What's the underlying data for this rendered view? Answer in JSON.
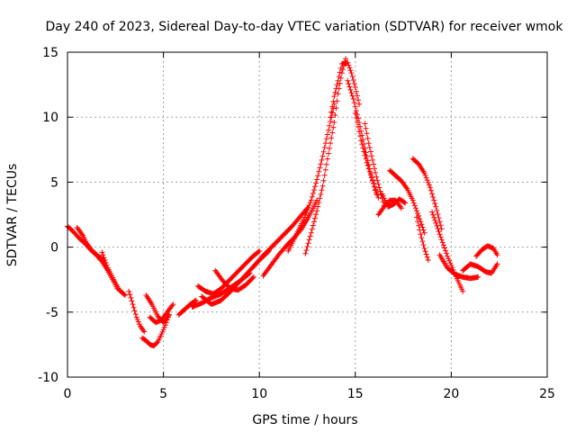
{
  "chart_data": {
    "type": "scatter",
    "title": "Day 240 of 2023, Sidereal Day-to-day VTEC variation (SDTVAR) for receiver wmok",
    "xlabel": "GPS time / hours",
    "ylabel": "SDTVAR / TECUs",
    "xlim": [
      0,
      25
    ],
    "ylim": [
      -10,
      15
    ],
    "xticks": [
      0,
      5,
      10,
      15,
      20,
      25
    ],
    "yticks": [
      -10,
      -5,
      0,
      5,
      10,
      15
    ],
    "grid": true,
    "marker": "+",
    "series": [
      {
        "name": "SDTVAR",
        "color": "#ff0000",
        "tracks": [
          {
            "x": [
              0.0,
              0.3,
              0.6,
              0.9,
              1.2,
              1.5,
              1.8,
              2.1,
              2.4,
              2.6
            ],
            "y": [
              1.6,
              1.2,
              0.7,
              0.3,
              -0.2,
              -0.6,
              -1.1,
              -1.8,
              -2.6,
              -3.2
            ]
          },
          {
            "x": [
              0.5,
              0.8,
              1.0,
              1.3,
              1.6,
              1.9
            ],
            "y": [
              1.5,
              0.9,
              0.3,
              -0.3,
              -0.7,
              -1.0
            ]
          },
          {
            "x": [
              1.8,
              2.1,
              2.4,
              2.7,
              3.0
            ],
            "y": [
              -0.4,
              -1.6,
              -2.5,
              -3.3,
              -3.7
            ]
          },
          {
            "x": [
              3.2,
              3.4,
              3.6,
              3.8,
              4.0
            ],
            "y": [
              -3.4,
              -4.4,
              -5.4,
              -6.1,
              -6.5
            ]
          },
          {
            "x": [
              3.9,
              4.1,
              4.3,
              4.5,
              4.7,
              4.9,
              5.1,
              5.3
            ],
            "y": [
              -7.0,
              -7.2,
              -7.5,
              -7.6,
              -7.3,
              -6.7,
              -6.0,
              -5.2
            ]
          },
          {
            "x": [
              4.3,
              4.6,
              4.9,
              5.2,
              5.5
            ],
            "y": [
              -5.4,
              -5.8,
              -5.6,
              -5.0,
              -4.4
            ]
          },
          {
            "x": [
              4.1,
              4.4,
              4.7,
              5.0,
              5.3
            ],
            "y": [
              -3.7,
              -4.4,
              -5.3,
              -5.8,
              -5.2
            ]
          },
          {
            "x": [
              5.8,
              6.1,
              6.4,
              6.7
            ],
            "y": [
              -5.2,
              -4.8,
              -4.4,
              -4.1
            ]
          },
          {
            "x": [
              6.5,
              7.0,
              7.5,
              8.0,
              8.5,
              9.0,
              9.5
            ],
            "y": [
              -4.6,
              -4.3,
              -3.9,
              -3.6,
              -3.1,
              -2.6,
              -2.0
            ]
          },
          {
            "x": [
              6.8,
              7.2,
              7.6,
              8.0,
              8.4,
              8.8,
              9.2,
              9.6,
              10.0
            ],
            "y": [
              -3.0,
              -3.4,
              -3.6,
              -3.2,
              -2.6,
              -2.0,
              -1.4,
              -0.8,
              -0.3
            ]
          },
          {
            "x": [
              7.0,
              7.5,
              8.0,
              8.5,
              9.0,
              9.5,
              10.0,
              10.5
            ],
            "y": [
              -3.8,
              -4.4,
              -4.1,
              -3.4,
              -2.6,
              -1.8,
              -1.0,
              -0.3
            ]
          },
          {
            "x": [
              7.7,
              8.1,
              8.5,
              8.9,
              9.3,
              9.7
            ],
            "y": [
              -1.8,
              -2.6,
              -3.2,
              -3.3,
              -2.9,
              -2.3
            ]
          },
          {
            "x": [
              9.7,
              10.1,
              10.5,
              10.9,
              11.3,
              11.7,
              12.1,
              12.5
            ],
            "y": [
              -1.5,
              -0.8,
              -0.2,
              0.4,
              1.0,
              1.6,
              2.3,
              3.0
            ]
          },
          {
            "x": [
              10.2,
              10.6,
              11.0,
              11.4,
              11.8,
              12.2,
              12.6,
              13.0
            ],
            "y": [
              -2.2,
              -1.4,
              -0.6,
              0.1,
              0.7,
              1.4,
              2.4,
              3.6
            ]
          },
          {
            "x": [
              11.5,
              11.9,
              12.3,
              12.7,
              13.0,
              13.3,
              13.6,
              13.9
            ],
            "y": [
              -0.3,
              0.9,
              2.1,
              3.6,
              5.2,
              7.0,
              9.0,
              11.0
            ]
          },
          {
            "x": [
              12.4,
              12.7,
              13.0,
              13.3,
              13.6,
              13.9,
              14.1,
              14.3,
              14.5
            ],
            "y": [
              -0.5,
              1.1,
              2.8,
              4.7,
              7.2,
              9.6,
              11.8,
              13.4,
              14.5
            ]
          },
          {
            "x": [
              13.7,
              13.9,
              14.1,
              14.3,
              14.6,
              14.8,
              15.0,
              15.2
            ],
            "y": [
              10.0,
              11.6,
              12.8,
              14.1,
              14.2,
              13.4,
              12.3,
              11.0
            ]
          },
          {
            "x": [
              14.6,
              14.9,
              15.2,
              15.5,
              15.8,
              16.1
            ],
            "y": [
              12.8,
              11.4,
              9.6,
              7.6,
              5.7,
              4.1
            ]
          },
          {
            "x": [
              15.0,
              15.3,
              15.6,
              15.9,
              16.2
            ],
            "y": [
              10.3,
              8.2,
              6.5,
              5.1,
              3.8
            ]
          },
          {
            "x": [
              15.5,
              15.7,
              15.9,
              16.1,
              16.3,
              16.5
            ],
            "y": [
              9.5,
              8.0,
              6.7,
              5.4,
              4.3,
              3.2
            ]
          },
          {
            "x": [
              16.2,
              16.5,
              16.8,
              17.1,
              17.4
            ],
            "y": [
              2.5,
              3.1,
              3.6,
              3.6,
              3.0
            ]
          },
          {
            "x": [
              16.4,
              16.7,
              17.0,
              17.3,
              17.6
            ],
            "y": [
              4.1,
              3.1,
              3.3,
              3.7,
              3.4
            ]
          },
          {
            "x": [
              16.8,
              17.1,
              17.4,
              17.7,
              18.0,
              18.3,
              18.6
            ],
            "y": [
              5.9,
              5.5,
              5.1,
              4.5,
              3.6,
              2.4,
              1.1
            ]
          },
          {
            "x": [
              18.0,
              18.3,
              18.6,
              18.9,
              19.2,
              19.5
            ],
            "y": [
              6.8,
              6.4,
              5.7,
              4.6,
              3.1,
              1.4
            ]
          },
          {
            "x": [
              18.2,
              18.4,
              18.6,
              18.8
            ],
            "y": [
              2.3,
              1.0,
              -0.1,
              -1.0
            ]
          },
          {
            "x": [
              19.0,
              19.4,
              19.8,
              20.2,
              20.6
            ],
            "y": [
              2.7,
              1.0,
              -0.7,
              -2.1,
              -3.4
            ]
          },
          {
            "x": [
              19.4,
              19.8,
              20.2,
              20.6,
              21.0,
              21.4
            ],
            "y": [
              -0.6,
              -1.6,
              -2.1,
              -2.3,
              -2.4,
              -2.3
            ]
          },
          {
            "x": [
              20.6,
              21.0,
              21.4,
              21.8,
              22.1,
              22.4
            ],
            "y": [
              -1.8,
              -1.3,
              -1.5,
              -1.9,
              -2.0,
              -1.3
            ]
          },
          {
            "x": [
              21.3,
              21.6,
              21.9,
              22.2,
              22.4
            ],
            "y": [
              -0.7,
              -0.2,
              0.1,
              -0.1,
              -0.6
            ]
          }
        ]
      }
    ]
  }
}
